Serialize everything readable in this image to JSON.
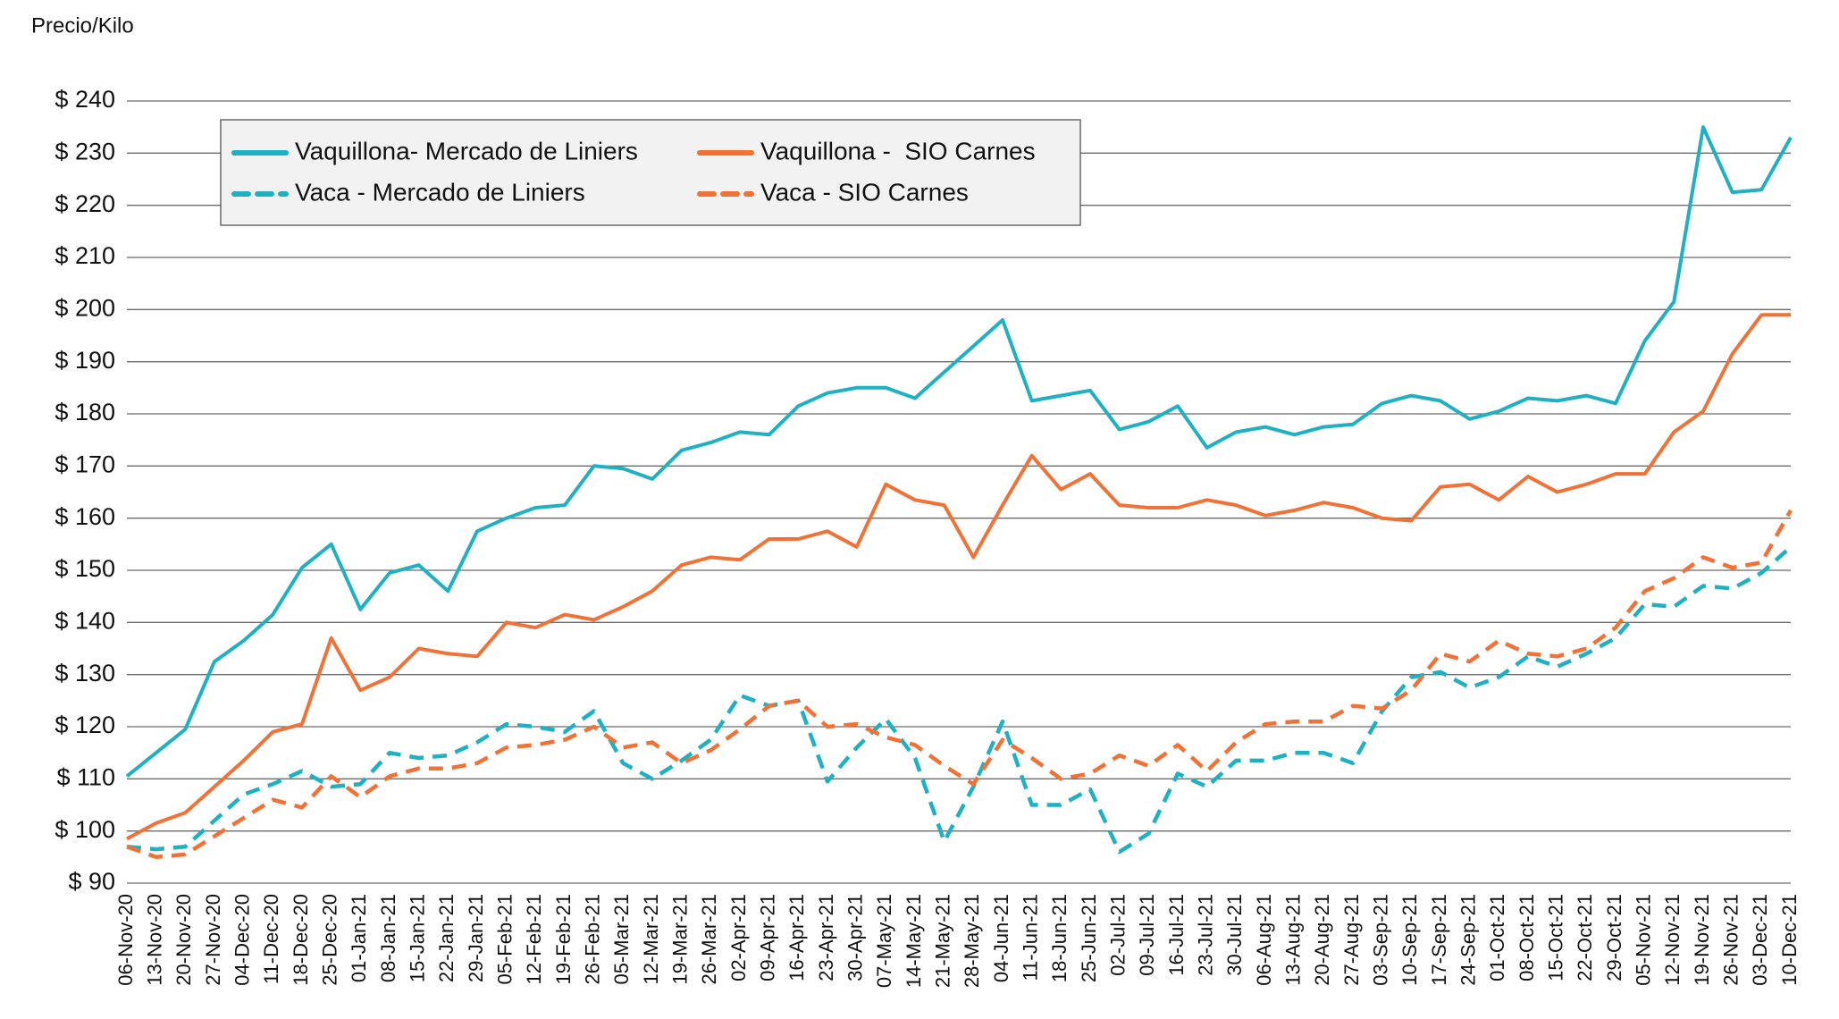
{
  "chart_data": {
    "type": "line",
    "y_label": "Precio/Kilo",
    "categories": [
      "06-Nov-20",
      "13-Nov-20",
      "20-Nov-20",
      "27-Nov-20",
      "04-Dec-20",
      "11-Dec-20",
      "18-Dec-20",
      "25-Dec-20",
      "01-Jan-21",
      "08-Jan-21",
      "15-Jan-21",
      "22-Jan-21",
      "29-Jan-21",
      "05-Feb-21",
      "12-Feb-21",
      "19-Feb-21",
      "26-Feb-21",
      "05-Mar-21",
      "12-Mar-21",
      "19-Mar-21",
      "26-Mar-21",
      "02-Apr-21",
      "09-Apr-21",
      "16-Apr-21",
      "23-Apr-21",
      "30-Apr-21",
      "07-May-21",
      "14-May-21",
      "21-May-21",
      "28-May-21",
      "04-Jun-21",
      "11-Jun-21",
      "18-Jun-21",
      "25-Jun-21",
      "02-Jul-21",
      "09-Jul-21",
      "16-Jul-21",
      "23-Jul-21",
      "30-Jul-21",
      "06-Aug-21",
      "13-Aug-21",
      "20-Aug-21",
      "27-Aug-21",
      "03-Sep-21",
      "10-Sep-21",
      "17-Sep-21",
      "24-Sep-21",
      "01-Oct-21",
      "08-Oct-21",
      "15-Oct-21",
      "22-Oct-21",
      "29-Oct-21",
      "05-Nov-21",
      "12-Nov-21",
      "19-Nov-21",
      "26-Nov-21",
      "03-Dec-21",
      "10-Dec-21"
    ],
    "series": [
      {
        "name": "Vaquillona- Mercado de Liniers",
        "color": "#1fb1c1",
        "dash": "solid",
        "values": [
          110.5,
          115,
          119.5,
          132.5,
          136.5,
          141.5,
          150.5,
          155,
          142.5,
          149.5,
          151,
          146,
          157.5,
          160,
          162,
          162.5,
          170,
          169.5,
          167.5,
          173,
          174.5,
          176.5,
          176,
          181.5,
          184,
          185,
          185,
          183,
          188,
          193,
          198,
          182.5,
          183.5,
          184.5,
          177,
          178.5,
          181.5,
          173.5,
          176.5,
          177.5,
          176,
          177.5,
          178,
          182,
          183.5,
          182.5,
          179,
          180.5,
          183,
          182.5,
          183.5,
          182,
          194,
          201.5,
          235,
          222.5,
          223,
          233
        ]
      },
      {
        "name": "Vaquillona -  SIO Carnes",
        "color": "#f07236",
        "dash": "solid",
        "values": [
          98.5,
          101.5,
          103.5,
          108.5,
          113.5,
          119,
          120.5,
          137,
          127,
          129.5,
          135,
          134,
          133.5,
          140,
          139,
          141.5,
          140.5,
          143,
          146,
          151,
          152.5,
          152,
          156,
          156,
          157.5,
          154.5,
          166.5,
          163.5,
          162.5,
          152.5,
          162.5,
          172,
          165.5,
          168.5,
          162.5,
          162,
          162,
          163.5,
          162.5,
          160.5,
          161.5,
          163,
          162,
          160,
          159.5,
          166,
          166.5,
          163.5,
          168,
          165,
          166.5,
          168.5,
          168.5,
          176.5,
          180.5,
          191.5,
          199,
          199
        ]
      },
      {
        "name": "Vaca - Mercado de Liniers",
        "color": "#1fb1c1",
        "dash": "dashed",
        "values": [
          97,
          96.5,
          97,
          102,
          107,
          109,
          111.5,
          108.5,
          109,
          115,
          114,
          114.5,
          117,
          120.5,
          120,
          119,
          123,
          113,
          110,
          113.5,
          117.5,
          126,
          124,
          125,
          109.5,
          116,
          121.5,
          114,
          98,
          108.5,
          121,
          105,
          105,
          108,
          96,
          99.5,
          111,
          108.5,
          113.5,
          113.5,
          115,
          115,
          113,
          123,
          129.5,
          130.5,
          127.5,
          129.5,
          133.5,
          131.5,
          134,
          137,
          143.5,
          143,
          147,
          146.5,
          149.5,
          154.5
        ]
      },
      {
        "name": "Vaca - SIO Carnes",
        "color": "#f07236",
        "dash": "dashed",
        "values": [
          97,
          95,
          95.5,
          99,
          102.5,
          106,
          104.5,
          110.5,
          106.5,
          110.5,
          112,
          112,
          113,
          116,
          116.5,
          117.5,
          120,
          116,
          117,
          113,
          115.5,
          119.5,
          124,
          125,
          120,
          120.5,
          118,
          116.5,
          112.5,
          109,
          117.5,
          114,
          110,
          111,
          114.5,
          112.5,
          116.5,
          111.5,
          117,
          120.5,
          121,
          121,
          124,
          123.5,
          127,
          134,
          132.5,
          136.5,
          134,
          133.5,
          135,
          139,
          146,
          148.5,
          152.5,
          150.5,
          151.5,
          161.5
        ]
      }
    ],
    "ylim": [
      90,
      240
    ],
    "yticks": [
      {
        "value": 90,
        "label": "$ 90"
      },
      {
        "value": 100,
        "label": "$ 100"
      },
      {
        "value": 110,
        "label": "$ 110"
      },
      {
        "value": 120,
        "label": "$ 120"
      },
      {
        "value": 130,
        "label": "$ 130"
      },
      {
        "value": 140,
        "label": "$ 140"
      },
      {
        "value": 150,
        "label": "$ 150"
      },
      {
        "value": 160,
        "label": "$ 160"
      },
      {
        "value": 170,
        "label": "$ 170"
      },
      {
        "value": 180,
        "label": "$ 180"
      },
      {
        "value": 190,
        "label": "$ 190"
      },
      {
        "value": 200,
        "label": "$ 200"
      },
      {
        "value": 210,
        "label": "$ 210"
      },
      {
        "value": 220,
        "label": "$ 220"
      },
      {
        "value": 230,
        "label": "$ 230"
      },
      {
        "value": 240,
        "label": "$ 240"
      }
    ],
    "grid": true,
    "legend": "upper left"
  }
}
